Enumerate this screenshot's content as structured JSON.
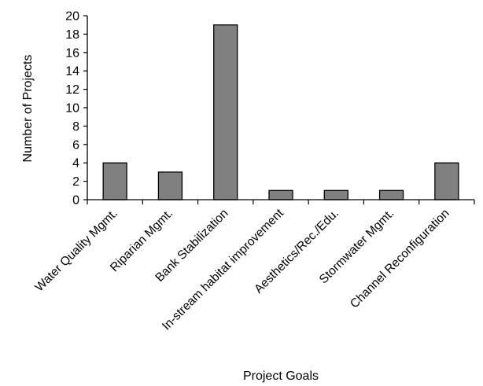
{
  "chart_data": {
    "type": "bar",
    "categories": [
      "Water Quality Mgmt.",
      "Riparian Mgmt.",
      "Bank Stabilization",
      "In-stream habitat improvement",
      "Aesthetics/Rec./Edu.",
      "Stormwater Mgmt.",
      "Channel Reconfiguration"
    ],
    "values": [
      4,
      3,
      19,
      1,
      1,
      1,
      4
    ],
    "xlabel": "Project Goals",
    "ylabel": "Number of Projects",
    "ylim": [
      0,
      20
    ],
    "yticks": [
      "0",
      "2",
      "4",
      "6",
      "8",
      "10",
      "12",
      "14",
      "16",
      "18",
      "20"
    ],
    "grid": false,
    "legend": "none",
    "bar_color": "#808080"
  }
}
